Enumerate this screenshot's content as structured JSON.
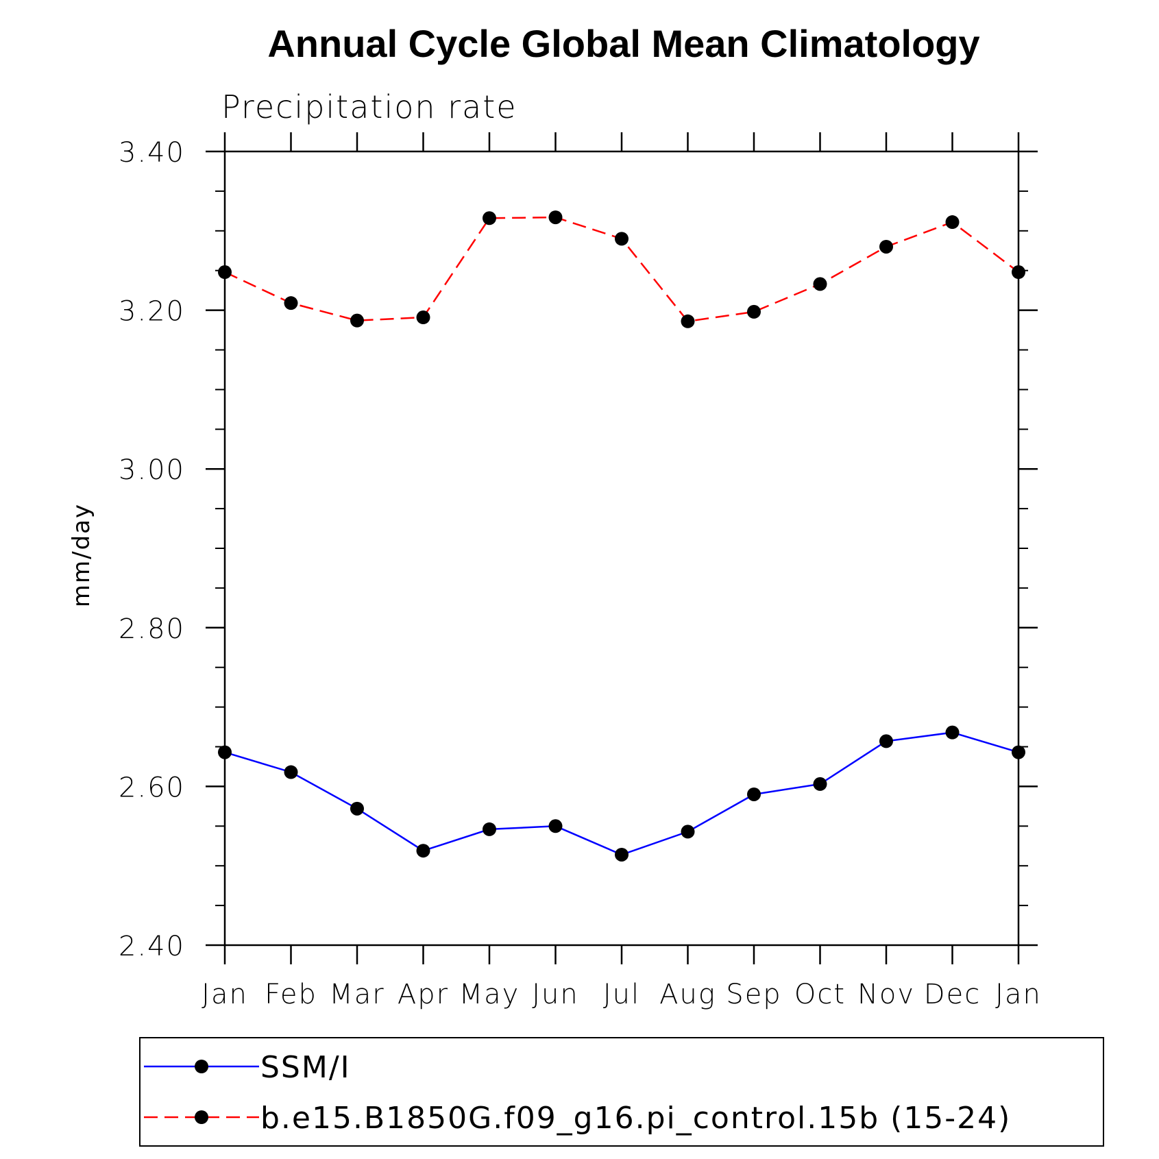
{
  "chart_data": {
    "type": "line",
    "title": "Annual Cycle Global Mean Climatology",
    "subtitle": "Precipitation rate",
    "ylabel": "mm/day",
    "xlabel": "",
    "categories": [
      "Jan",
      "Feb",
      "Mar",
      "Apr",
      "May",
      "Jun",
      "Jul",
      "Aug",
      "Sep",
      "Oct",
      "Nov",
      "Dec",
      "Jan"
    ],
    "ylim": [
      2.4,
      3.4
    ],
    "yticks": [
      "2.40",
      "2.60",
      "2.80",
      "3.00",
      "3.20",
      "3.40"
    ],
    "grid": false,
    "legend_position": "bottom",
    "series": [
      {
        "name": "SSM/I",
        "color": "#0000ff",
        "dash": "solid",
        "marker": "filled-circle",
        "values": [
          2.643,
          2.618,
          2.572,
          2.519,
          2.546,
          2.55,
          2.514,
          2.543,
          2.59,
          2.603,
          2.657,
          2.668,
          2.643
        ]
      },
      {
        "name": "b.e15.B1850G.f09_g16.pi_control.15b (15-24)",
        "color": "#ff0000",
        "dash": "dashed",
        "marker": "filled-circle",
        "values": [
          3.248,
          3.209,
          3.187,
          3.191,
          3.316,
          3.317,
          3.29,
          3.186,
          3.198,
          3.233,
          3.28,
          3.311,
          3.248
        ]
      }
    ]
  }
}
